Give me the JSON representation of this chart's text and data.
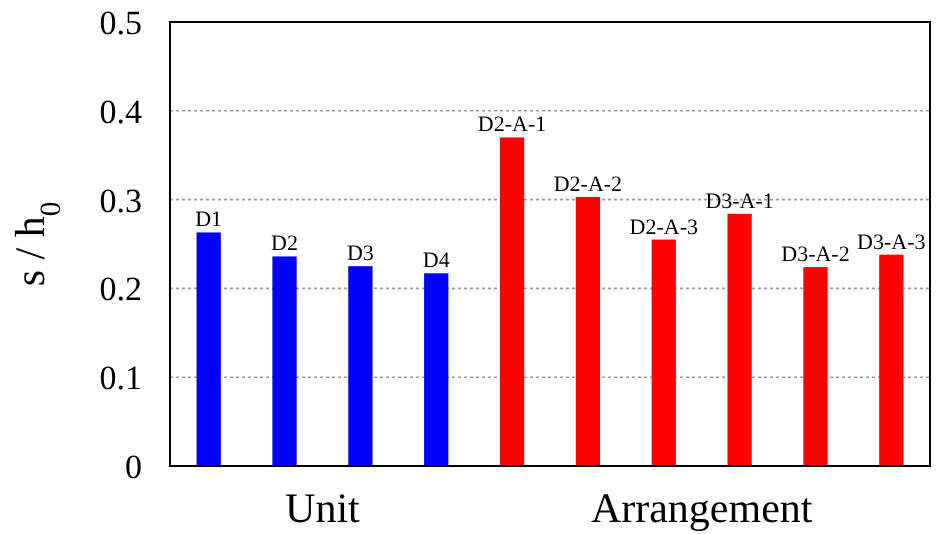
{
  "chart_data": {
    "type": "bar",
    "ylabel": "s / h$_{0}$",
    "categories": [
      "D1",
      "D2",
      "D3",
      "D4",
      "D2-A-1",
      "D2-A-2",
      "D2-A-3",
      "D3-A-1",
      "D3-A-2",
      "D3-A-3"
    ],
    "series": [
      {
        "name": "Unit",
        "color": "#0000ff",
        "values": [
          0.263,
          0.236,
          0.225,
          0.217,
          null,
          null,
          null,
          null,
          null,
          null
        ]
      },
      {
        "name": "Arrangement",
        "color": "#ff0000",
        "values": [
          null,
          null,
          null,
          null,
          0.37,
          0.303,
          0.255,
          0.284,
          0.224,
          0.238
        ]
      }
    ],
    "ylim": [
      0,
      0.5
    ],
    "yticks": [
      0,
      0.1,
      0.2,
      0.3,
      0.4,
      0.5
    ],
    "grid": "y"
  }
}
